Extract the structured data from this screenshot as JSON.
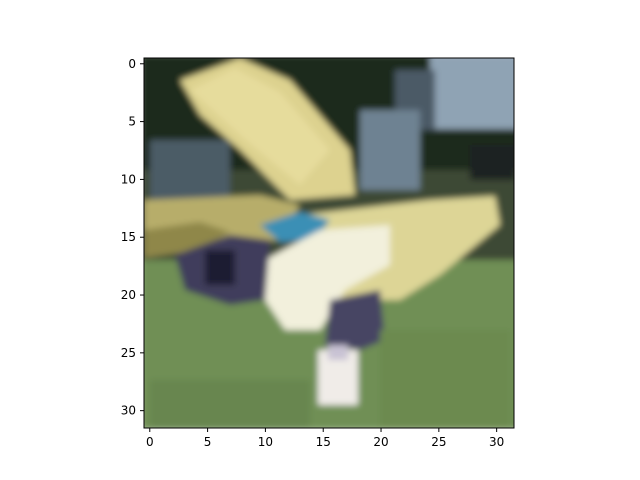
{
  "chart_data": {
    "type": "heatmap",
    "title": "",
    "xlabel": "",
    "ylabel": "",
    "x_ticks": [
      0,
      5,
      10,
      15,
      20,
      25,
      30
    ],
    "y_ticks": [
      0,
      5,
      10,
      15,
      20,
      25,
      30
    ],
    "xlim": [
      -0.5,
      31.5
    ],
    "ylim": [
      31.5,
      -0.5
    ],
    "grid_size": [
      32,
      32
    ],
    "y_axis_direction": "top-to-bottom",
    "grid": false,
    "legend": "none",
    "image_description_colors": {
      "background_top": "#1c2a1a",
      "grass": "#6f8f55",
      "wing_yellow": "#ddd28f",
      "sky_blue_gray": "#8fa3b4",
      "cockpit_blue": "#3a8fb5",
      "white_body": "#f2f0dc",
      "shadow_purple": "#3f3d5c"
    }
  }
}
